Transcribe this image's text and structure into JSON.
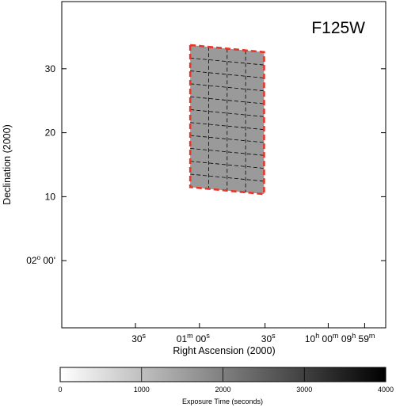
{
  "chart_data": {
    "type": "heatmap",
    "filter_label": "F125W",
    "xlabel": "Right Ascension (2000)",
    "ylabel": "Declination (2000)",
    "y_ticks": [
      {
        "value": 30,
        "label": "30"
      },
      {
        "value": 20,
        "label": "20"
      },
      {
        "value": 10,
        "label": "10"
      },
      {
        "value": 0,
        "label": "00'",
        "prefix": "02",
        "sup": "o"
      }
    ],
    "ylim": [
      -10.5,
      40.5
    ],
    "x_ticks": [
      {
        "pos": 0.2275,
        "text": "30",
        "sup": "s"
      },
      {
        "pos": 0.425,
        "text": "01",
        "sup": "m",
        "after": "00",
        "sup2": "s"
      },
      {
        "pos": 0.6275,
        "text": "30",
        "sup": "s"
      },
      {
        "pos": 0.8225,
        "text": "10",
        "sup": "h",
        "after": "00",
        "sup2": "m"
      },
      {
        "pos": 0.935,
        "text": "09",
        "sup": "h",
        "after": "59",
        "sup2": "m"
      },
      {
        "pos": 1.1575,
        "text": "30",
        "sup": "s"
      }
    ],
    "footprint": {
      "exposure_seconds": 1650,
      "corners": [
        {
          "ra_frac": 0.3965,
          "dec": 33.7
        },
        {
          "ra_frac": 0.6245,
          "dec": 32.6
        },
        {
          "ra_frac": 0.6245,
          "dec": 10.4
        },
        {
          "ra_frac": 0.3965,
          "dec": 11.5
        }
      ],
      "grid_cols": 4,
      "grid_rows": 11,
      "fill_color": "#9a9a9a",
      "border_color": "#e8352a",
      "grid_color": "#000000"
    },
    "colorbar": {
      "title": "Exposure Time (seconds)",
      "min": 0,
      "max": 4000,
      "ticks": [
        0,
        1000,
        2000,
        3000,
        4000
      ],
      "tick_labels": [
        "0",
        "1000",
        "2000",
        "3000",
        "4000"
      ],
      "color_low": "#ffffff",
      "color_high": "#000000"
    }
  }
}
